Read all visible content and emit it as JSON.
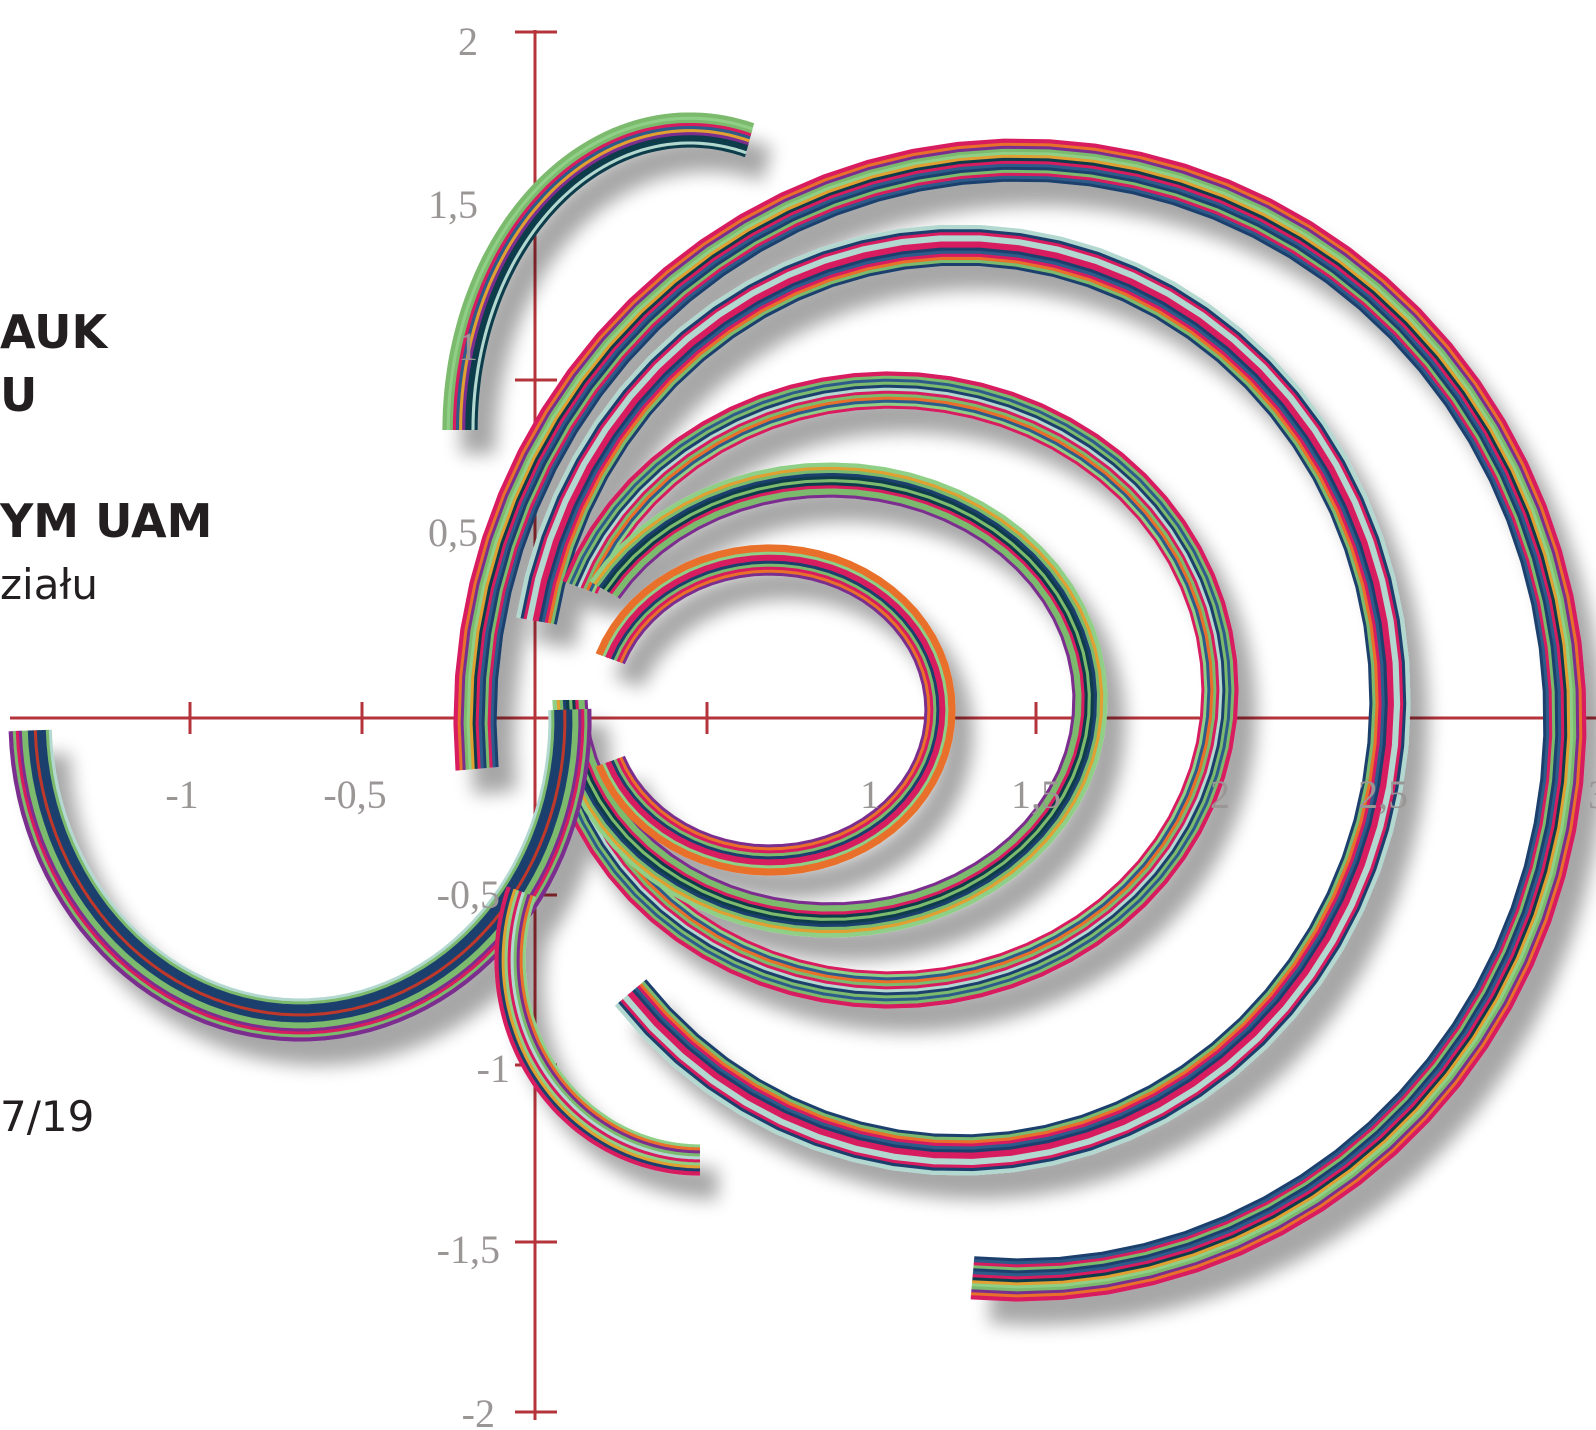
{
  "cover": {
    "line1": "AUK",
    "line2": "U",
    "line3": "YM UAM",
    "line4": "ziału",
    "line5": "7/19"
  },
  "axes": {
    "color": "#b5333b",
    "x_ticks": [
      "-1",
      "-0,5",
      "1",
      "1,5",
      "2",
      "2,5",
      "3"
    ],
    "y_ticks": [
      "2",
      "1,5",
      "1",
      "0,5",
      "-0,5",
      "-1",
      "-1,5",
      "-2"
    ]
  },
  "palette": [
    "#d81b60",
    "#d81b60",
    "#d81b60",
    "#7cba6e",
    "#7cba6e",
    "#8fcf86",
    "#1e3f6e",
    "#2e5c8a",
    "#e0a030",
    "#e8702a",
    "#7b2d8e",
    "#c0392b",
    "#0f3c4c",
    "#b2d8d0"
  ]
}
